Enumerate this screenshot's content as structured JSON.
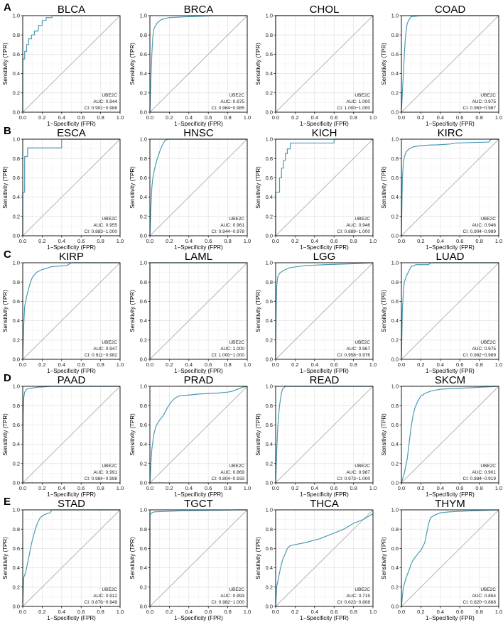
{
  "figure": {
    "x_axis_label": "1−Specificity (FPR)",
    "y_axis_label": "Sensitivity (TPR)",
    "gene": "UBE2C",
    "auc_prefix": "AUC: ",
    "ci_prefix": "CI: ",
    "ticks": [
      "0.0",
      "0.2",
      "0.4",
      "0.6",
      "0.8",
      "1.0"
    ],
    "row_labels": [
      "A",
      "B",
      "C",
      "D",
      "E"
    ],
    "colors": {
      "roc": "#4a9bb5",
      "diagonal": "#b0b0b0",
      "grid": "#e4e4e4",
      "frame": "#000000"
    }
  },
  "chart_data": [
    {
      "type": "line",
      "title": "BLCA",
      "gene": "UBE2C",
      "auc": "0.944",
      "ci": "0.901−0.988",
      "xlabel": "1−Specificity (FPR)",
      "ylabel": "Sensitivity (TPR)",
      "xlim": [
        0,
        1
      ],
      "ylim": [
        0,
        1
      ],
      "grid": true,
      "x": [
        0,
        0,
        0.02,
        0.02,
        0.04,
        0.04,
        0.06,
        0.06,
        0.09,
        0.09,
        0.12,
        0.12,
        0.16,
        0.16,
        0.2,
        0.2,
        0.24,
        0.24,
        0.3,
        0.3,
        1
      ],
      "y": [
        0,
        0.55,
        0.55,
        0.63,
        0.63,
        0.7,
        0.7,
        0.76,
        0.76,
        0.8,
        0.8,
        0.84,
        0.84,
        0.9,
        0.9,
        0.95,
        0.95,
        0.98,
        0.98,
        1,
        1
      ]
    },
    {
      "type": "line",
      "title": "BRCA",
      "gene": "UBE2C",
      "auc": "0.975",
      "ci": "0.964−0.985",
      "xlabel": "1−Specificity (FPR)",
      "ylabel": "Sensitivity (TPR)",
      "xlim": [
        0,
        1
      ],
      "ylim": [
        0,
        1
      ],
      "grid": true,
      "x": [
        0,
        0.01,
        0.02,
        0.03,
        0.04,
        0.06,
        0.08,
        0.12,
        0.2,
        0.4,
        0.7,
        1
      ],
      "y": [
        0,
        0.35,
        0.6,
        0.78,
        0.86,
        0.9,
        0.93,
        0.96,
        0.98,
        0.99,
        1,
        1
      ]
    },
    {
      "type": "line",
      "title": "CHOL",
      "gene": "UBE2C",
      "auc": "1.000",
      "ci": "1.000−1.000",
      "xlabel": "1−Specificity (FPR)",
      "ylabel": "Sensitivity (TPR)",
      "xlim": [
        0,
        1
      ],
      "ylim": [
        0,
        1
      ],
      "grid": true,
      "x": [
        0,
        0,
        1
      ],
      "y": [
        0,
        1,
        1
      ]
    },
    {
      "type": "line",
      "title": "COAD",
      "gene": "UBE2C",
      "auc": "0.975",
      "ci": "0.963−0.987",
      "xlabel": "1−Specificity (FPR)",
      "ylabel": "Sensitivity (TPR)",
      "xlim": [
        0,
        1
      ],
      "ylim": [
        0,
        1
      ],
      "grid": true,
      "x": [
        0,
        0.01,
        0.02,
        0.03,
        0.04,
        0.05,
        0.06,
        0.08,
        0.1,
        0.2,
        1
      ],
      "y": [
        0,
        0.2,
        0.4,
        0.6,
        0.76,
        0.86,
        0.92,
        0.96,
        0.99,
        1,
        1
      ]
    },
    {
      "type": "line",
      "title": "ESCA",
      "gene": "UBE2C",
      "auc": "0.955",
      "ci": "0.883−1.000",
      "xlabel": "1−Specificity (FPR)",
      "ylabel": "Sensitivity (TPR)",
      "xlim": [
        0,
        1
      ],
      "ylim": [
        0,
        1
      ],
      "grid": true,
      "x": [
        0,
        0,
        0.02,
        0.02,
        0.05,
        0.05,
        0.4,
        0.4,
        1
      ],
      "y": [
        0,
        0.45,
        0.45,
        0.82,
        0.82,
        0.91,
        0.91,
        1,
        1
      ]
    },
    {
      "type": "line",
      "title": "HNSC",
      "gene": "UBE2C",
      "auc": "0.961",
      "ci": "0.944−0.978",
      "xlabel": "1−Specificity (FPR)",
      "ylabel": "Sensitivity (TPR)",
      "xlim": [
        0,
        1
      ],
      "ylim": [
        0,
        1
      ],
      "grid": true,
      "x": [
        0,
        0.01,
        0.02,
        0.03,
        0.05,
        0.07,
        0.09,
        0.11,
        0.13,
        0.15,
        0.18,
        1
      ],
      "y": [
        0,
        0.3,
        0.5,
        0.6,
        0.7,
        0.78,
        0.84,
        0.9,
        0.94,
        0.98,
        1,
        1
      ]
    },
    {
      "type": "line",
      "title": "KICH",
      "gene": "UBE2C",
      "auc": "0.946",
      "ci": "0.889−1.000",
      "xlabel": "1−Specificity (FPR)",
      "ylabel": "Sensitivity (TPR)",
      "xlim": [
        0,
        1
      ],
      "ylim": [
        0,
        1
      ],
      "grid": true,
      "x": [
        0,
        0,
        0.04,
        0.04,
        0.06,
        0.06,
        0.08,
        0.08,
        0.1,
        0.1,
        0.12,
        0.12,
        0.15,
        0.15,
        0.6,
        0.6,
        1
      ],
      "y": [
        0,
        0.45,
        0.45,
        0.6,
        0.6,
        0.7,
        0.7,
        0.78,
        0.78,
        0.85,
        0.85,
        0.9,
        0.9,
        0.96,
        0.96,
        1,
        1
      ]
    },
    {
      "type": "line",
      "title": "KIRC",
      "gene": "UBE2C",
      "auc": "0.946",
      "ci": "0.904−0.989",
      "xlabel": "1−Specificity (FPR)",
      "ylabel": "Sensitivity (TPR)",
      "xlim": [
        0,
        1
      ],
      "ylim": [
        0,
        1
      ],
      "grid": true,
      "x": [
        0,
        0.01,
        0.02,
        0.03,
        0.05,
        0.08,
        0.12,
        0.18,
        0.3,
        0.35,
        0.5,
        0.55,
        0.9,
        0.92,
        1
      ],
      "y": [
        0,
        0.6,
        0.75,
        0.82,
        0.87,
        0.9,
        0.92,
        0.93,
        0.94,
        0.94,
        0.95,
        0.96,
        0.97,
        1,
        1
      ]
    },
    {
      "type": "line",
      "title": "KIRP",
      "gene": "UBE2C",
      "auc": "0.947",
      "ci": "0.911−0.982",
      "xlabel": "1−Specificity (FPR)",
      "ylabel": "Sensitivity (TPR)",
      "xlim": [
        0,
        1
      ],
      "ylim": [
        0,
        1
      ],
      "grid": true,
      "x": [
        0,
        0.01,
        0.02,
        0.04,
        0.06,
        0.08,
        0.1,
        0.14,
        0.2,
        0.3,
        0.45,
        0.5,
        1
      ],
      "y": [
        0,
        0.35,
        0.55,
        0.65,
        0.73,
        0.8,
        0.85,
        0.9,
        0.93,
        0.96,
        0.97,
        1,
        1
      ]
    },
    {
      "type": "line",
      "title": "LAML",
      "gene": "UBE2C",
      "auc": "1.000",
      "ci": "1.000−1.000",
      "xlabel": "1−Specificity (FPR)",
      "ylabel": "Sensitivity (TPR)",
      "xlim": [
        0,
        1
      ],
      "ylim": [
        0,
        1
      ],
      "grid": true,
      "x": [
        0,
        0,
        1
      ],
      "y": [
        0,
        1,
        1
      ]
    },
    {
      "type": "line",
      "title": "LGG",
      "gene": "UBE2C",
      "auc": "0.967",
      "ci": "0.958−0.976",
      "xlabel": "1−Specificity (FPR)",
      "ylabel": "Sensitivity (TPR)",
      "xlim": [
        0,
        1
      ],
      "ylim": [
        0,
        1
      ],
      "grid": true,
      "x": [
        0,
        0.005,
        0.01,
        0.02,
        0.04,
        0.08,
        0.15,
        0.3,
        0.5,
        0.8,
        1
      ],
      "y": [
        0,
        0.5,
        0.75,
        0.85,
        0.89,
        0.92,
        0.95,
        0.97,
        0.98,
        0.99,
        1
      ]
    },
    {
      "type": "line",
      "title": "LUAD",
      "gene": "UBE2C",
      "auc": "0.975",
      "ci": "0.962−0.989",
      "xlabel": "1−Specificity (FPR)",
      "ylabel": "Sensitivity (TPR)",
      "xlim": [
        0,
        1
      ],
      "ylim": [
        0,
        1
      ],
      "grid": true,
      "x": [
        0,
        0.01,
        0.02,
        0.03,
        0.05,
        0.08,
        0.1,
        0.15,
        0.28,
        0.3,
        1
      ],
      "y": [
        0,
        0.5,
        0.7,
        0.8,
        0.86,
        0.92,
        0.96,
        0.98,
        0.98,
        1,
        1
      ]
    },
    {
      "type": "line",
      "title": "PAAD",
      "gene": "UBE2C",
      "auc": "0.991",
      "ci": "0.984−0.998",
      "xlabel": "1−Specificity (FPR)",
      "ylabel": "Sensitivity (TPR)",
      "xlim": [
        0,
        1
      ],
      "ylim": [
        0,
        1
      ],
      "grid": true,
      "x": [
        0,
        0.005,
        0.01,
        0.02,
        0.04,
        0.08,
        0.15,
        0.3,
        1
      ],
      "y": [
        0,
        0.7,
        0.88,
        0.94,
        0.97,
        0.98,
        0.99,
        1,
        1
      ]
    },
    {
      "type": "line",
      "title": "PRAD",
      "gene": "UBE2C",
      "auc": "0.869",
      "ci": "0.804−0.933",
      "xlabel": "1−Specificity (FPR)",
      "ylabel": "Sensitivity (TPR)",
      "xlim": [
        0,
        1
      ],
      "ylim": [
        0,
        1
      ],
      "grid": true,
      "x": [
        0,
        0.01,
        0.02,
        0.04,
        0.06,
        0.08,
        0.1,
        0.14,
        0.18,
        0.22,
        0.26,
        0.3,
        0.4,
        0.5,
        0.7,
        0.8,
        0.85,
        0.9,
        0.95,
        1
      ],
      "y": [
        0,
        0.2,
        0.35,
        0.5,
        0.58,
        0.62,
        0.65,
        0.7,
        0.78,
        0.84,
        0.88,
        0.9,
        0.91,
        0.92,
        0.93,
        0.94,
        0.95,
        0.97,
        0.99,
        1
      ]
    },
    {
      "type": "line",
      "title": "READ",
      "gene": "UBE2C",
      "auc": "0.987",
      "ci": "0.973−1.000",
      "xlabel": "1−Specificity (FPR)",
      "ylabel": "Sensitivity (TPR)",
      "xlim": [
        0,
        1
      ],
      "ylim": [
        0,
        1
      ],
      "grid": true,
      "x": [
        0,
        0.01,
        0.02,
        0.03,
        0.04,
        0.05,
        0.06,
        0.07,
        0.1,
        1
      ],
      "y": [
        0,
        0.3,
        0.55,
        0.7,
        0.8,
        0.87,
        0.93,
        0.97,
        1,
        1
      ]
    },
    {
      "type": "line",
      "title": "SKCM",
      "gene": "UBE2C",
      "auc": "0.901",
      "ci": "0.884−0.919",
      "xlabel": "1−Specificity (FPR)",
      "ylabel": "Sensitivity (TPR)",
      "xlim": [
        0,
        1
      ],
      "ylim": [
        0,
        1
      ],
      "grid": true,
      "x": [
        0,
        0.03,
        0.06,
        0.08,
        0.1,
        0.12,
        0.14,
        0.17,
        0.2,
        0.25,
        0.3,
        0.4,
        0.6,
        0.8,
        1
      ],
      "y": [
        0,
        0.1,
        0.25,
        0.42,
        0.58,
        0.7,
        0.78,
        0.85,
        0.9,
        0.93,
        0.95,
        0.97,
        0.98,
        0.99,
        1
      ]
    },
    {
      "type": "line",
      "title": "STAD",
      "gene": "UBE2C",
      "auc": "0.912",
      "ci": "0.876−0.949",
      "xlabel": "1−Specificity (FPR)",
      "ylabel": "Sensitivity (TPR)",
      "xlim": [
        0,
        1
      ],
      "ylim": [
        0,
        1
      ],
      "grid": true,
      "x": [
        0,
        0.01,
        0.03,
        0.05,
        0.07,
        0.09,
        0.11,
        0.13,
        0.15,
        0.18,
        0.22,
        0.28,
        0.3,
        1
      ],
      "y": [
        0,
        0.3,
        0.35,
        0.45,
        0.55,
        0.65,
        0.73,
        0.8,
        0.86,
        0.92,
        0.95,
        0.97,
        1,
        1
      ]
    },
    {
      "type": "line",
      "title": "TGCT",
      "gene": "UBE2C",
      "auc": "0.993",
      "ci": "0.982−1.000",
      "xlabel": "1−Specificity (FPR)",
      "ylabel": "Sensitivity (TPR)",
      "xlim": [
        0,
        1
      ],
      "ylim": [
        0,
        1
      ],
      "grid": true,
      "x": [
        0,
        0,
        0.02,
        0.05,
        0.3,
        0.6,
        0.9,
        1
      ],
      "y": [
        0,
        0.95,
        0.97,
        0.98,
        0.99,
        0.995,
        1,
        1
      ]
    },
    {
      "type": "line",
      "title": "THCA",
      "gene": "UBE2C",
      "auc": "0.715",
      "ci": "0.623−0.808",
      "xlabel": "1−Specificity (FPR)",
      "ylabel": "Sensitivity (TPR)",
      "xlim": [
        0,
        1
      ],
      "ylim": [
        0,
        1
      ],
      "grid": true,
      "x": [
        0,
        0.01,
        0.03,
        0.05,
        0.07,
        0.1,
        0.12,
        0.15,
        0.2,
        0.3,
        0.45,
        0.6,
        0.7,
        0.8,
        0.9,
        1
      ],
      "y": [
        0,
        0.2,
        0.3,
        0.4,
        0.48,
        0.55,
        0.6,
        0.63,
        0.64,
        0.66,
        0.7,
        0.76,
        0.8,
        0.86,
        0.9,
        0.96
      ]
    },
    {
      "type": "line",
      "title": "THYM",
      "gene": "UBE2C",
      "auc": "0.854",
      "ci": "0.820−0.888",
      "xlabel": "1−Specificity (FPR)",
      "ylabel": "Sensitivity (TPR)",
      "xlim": [
        0,
        1
      ],
      "ylim": [
        0,
        1
      ],
      "grid": true,
      "x": [
        0,
        0.02,
        0.05,
        0.08,
        0.1,
        0.12,
        0.15,
        0.18,
        0.2,
        0.22,
        0.24,
        0.26,
        0.28,
        0.3,
        0.35,
        0.4,
        0.5,
        0.7,
        1
      ],
      "y": [
        0,
        0.2,
        0.3,
        0.38,
        0.44,
        0.48,
        0.52,
        0.56,
        0.58,
        0.62,
        0.66,
        0.76,
        0.86,
        0.92,
        0.95,
        0.97,
        0.98,
        0.99,
        1
      ]
    }
  ]
}
